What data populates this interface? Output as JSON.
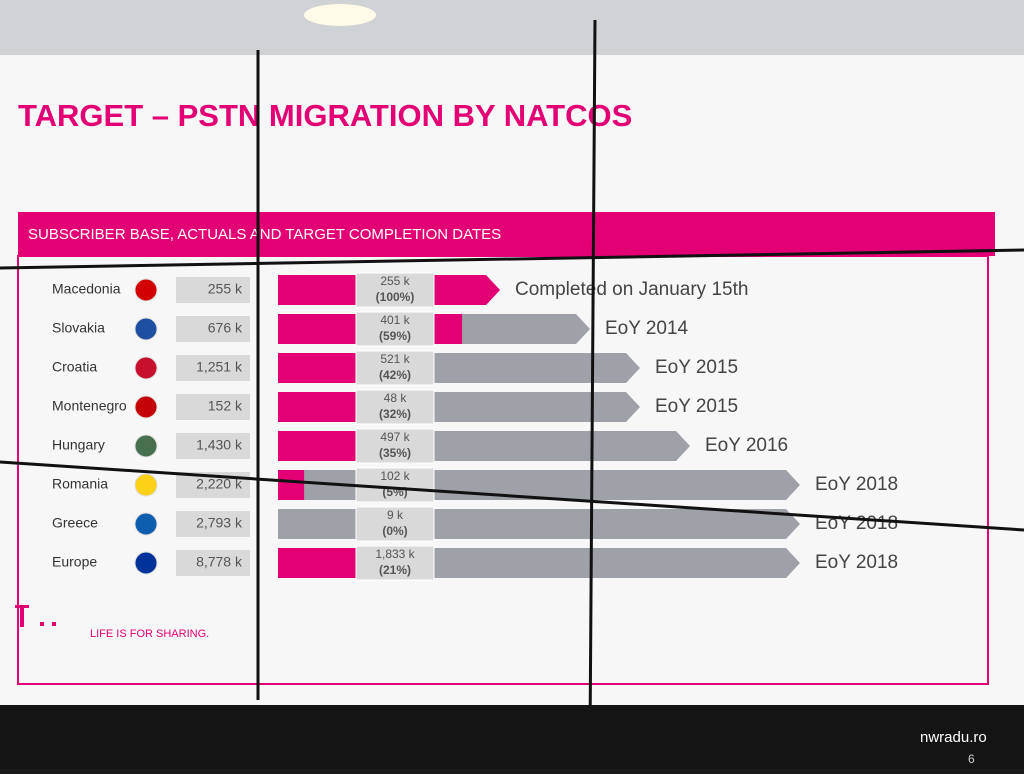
{
  "chart_data": {
    "type": "progress",
    "title": "TARGET – PSTN MIGRATION BY NATCOS",
    "subtitle": "SUBSCRIBER BASE, ACTUALS AND TARGET COMPLETION DATES",
    "categories": [
      "Macedonia",
      "Slovakia",
      "Croatia",
      "Montenegro",
      "Hungary",
      "Romania",
      "Greece",
      "Europe"
    ],
    "subscriber_base": {
      "values": [
        255,
        676,
        1251,
        152,
        1430,
        2220,
        2793,
        8778
      ],
      "value_labels": [
        "255 k",
        "676 k",
        "1,251 k",
        "152 k",
        "1,430 k",
        "2,220 k",
        "2,793 k",
        "8,778 k"
      ]
    },
    "actuals": {
      "values": [
        255,
        401,
        521,
        48,
        497,
        102,
        9,
        1833
      ],
      "value_labels": [
        "255 k",
        "401 k",
        "521 k",
        "48 k",
        "497 k",
        "102 k",
        "9 k",
        "1,833 k"
      ]
    },
    "completion_pct": {
      "values": [
        100,
        59,
        42,
        32,
        35,
        5,
        0,
        21
      ],
      "value_labels": [
        "(100%)",
        "(59%)",
        "(42%)",
        "(32%)",
        "(35%)",
        "(5%)",
        "(0%)",
        "(21%)"
      ],
      "color": "#e20074"
    },
    "targets": [
      "Completed on January 15th",
      "EoY 2014",
      "EoY 2015",
      "EoY 2015",
      "EoY 2016",
      "EoY 2018",
      "EoY 2018",
      "EoY 2018"
    ],
    "footer": "LIFE IS FOR SHARING.",
    "watermark": "nwradu.ro",
    "page_number": "6"
  }
}
